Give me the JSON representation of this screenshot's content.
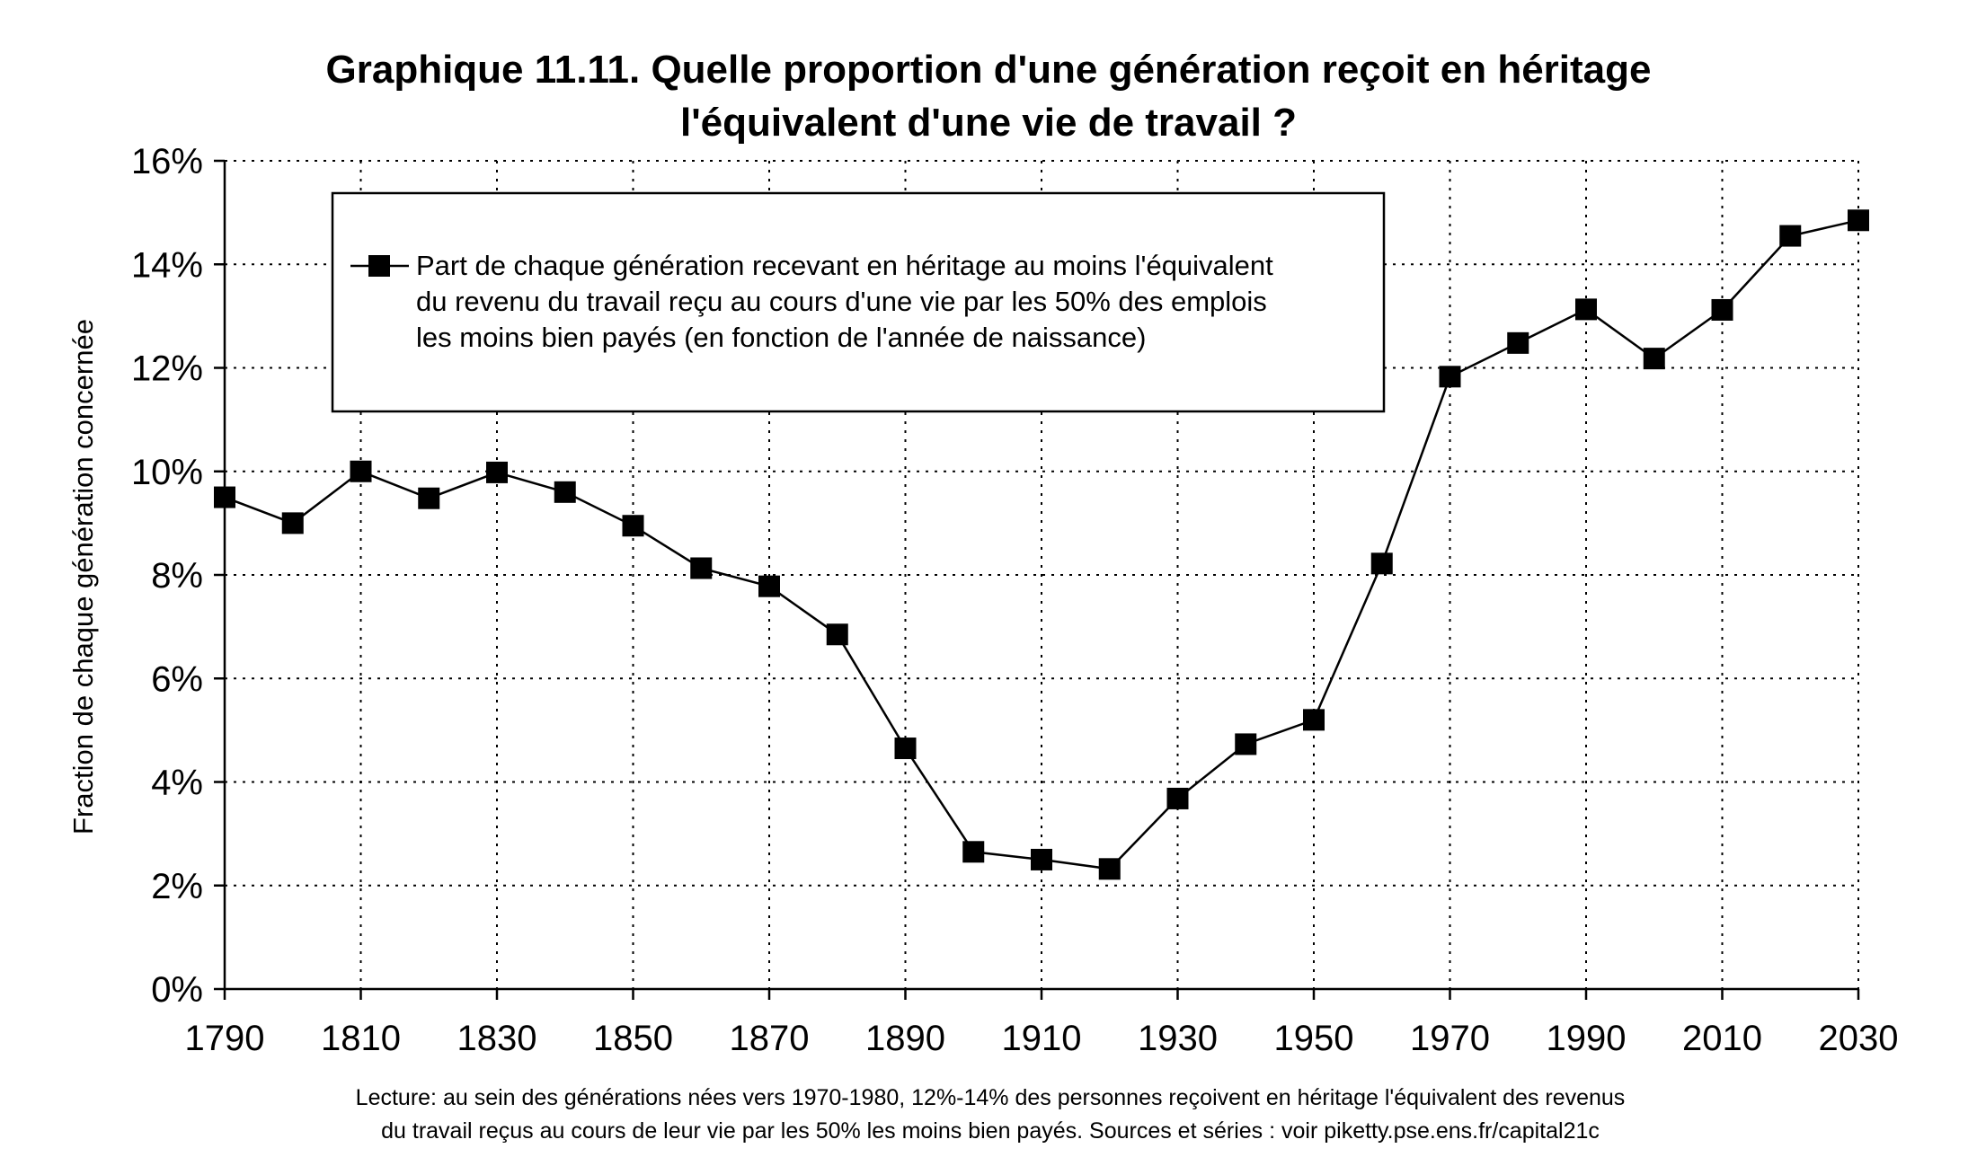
{
  "chart_data": {
    "type": "line",
    "title_lines": [
      "Graphique 11.11. Quelle proportion d'une génération reçoit en héritage",
      "l'équivalent d'une vie de travail ?"
    ],
    "ylabel": "Fraction de chaque génération concernée",
    "xlabel": "",
    "xlim": [
      1790,
      2030
    ],
    "ylim": [
      0,
      0.16
    ],
    "x_ticks": [
      1790,
      1810,
      1830,
      1850,
      1870,
      1890,
      1910,
      1930,
      1950,
      1970,
      1990,
      2010,
      2030
    ],
    "y_ticks": [
      0,
      0.02,
      0.04,
      0.06,
      0.08,
      0.1,
      0.12,
      0.14,
      0.16
    ],
    "y_tick_labels": [
      "0%",
      "2%",
      "4%",
      "6%",
      "8%",
      "10%",
      "12%",
      "14%",
      "16%"
    ],
    "grid": true,
    "legend_position": "top-left",
    "legend_lines": [
      "Part de chaque génération recevant en héritage au moins l'équivalent",
      "du revenu du travail reçu au cours d'une vie par les 50% des emplois",
      "les moins bien payés (en fonction de l'année de naissance)"
    ],
    "series": [
      {
        "marker": "square",
        "color": "#000000",
        "x": [
          1790,
          1800,
          1810,
          1820,
          1830,
          1840,
          1850,
          1860,
          1870,
          1880,
          1890,
          1900,
          1910,
          1920,
          1930,
          1940,
          1950,
          1960,
          1970,
          1980,
          1990,
          2000,
          2010,
          2020,
          2030
        ],
        "values": [
          0.095,
          0.09,
          0.1,
          0.0948,
          0.0998,
          0.096,
          0.0895,
          0.0813,
          0.0778,
          0.0685,
          0.0465,
          0.0265,
          0.025,
          0.0232,
          0.0368,
          0.0473,
          0.052,
          0.0822,
          0.1183,
          0.1248,
          0.1313,
          0.1218,
          0.1312,
          0.1455,
          0.1485
        ]
      }
    ],
    "note_lines": [
      "Lecture: au sein des générations nées vers 1970-1980, 12%-14% des personnes reçoivent en héritage l'équivalent des revenus",
      "du travail reçus au cours de leur vie par les 50% les moins bien payés. Sources et séries : voir piketty.pse.ens.fr/capital21c"
    ]
  }
}
